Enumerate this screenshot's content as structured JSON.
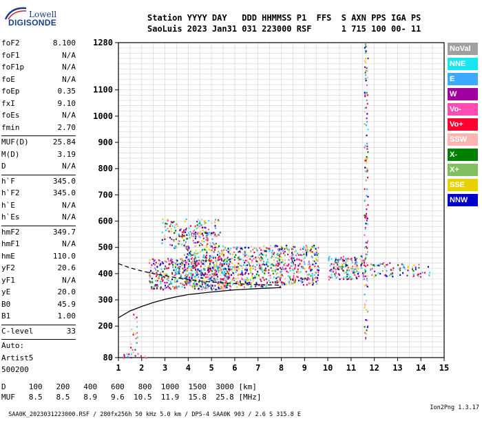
{
  "logo": {
    "brand": "Lowell",
    "product": "DIGISONDE"
  },
  "header": {
    "line1": "Station YYYY DAY   DDD HHMMSS P1  FFS  S AXN PPS IGA PS",
    "line2": "SaoLuis 2023 Jan31 031 223000 RSF      1 715 100 00- 11"
  },
  "params": {
    "group1": [
      {
        "k": "foF2",
        "v": "8.100"
      },
      {
        "k": "foF1",
        "v": "N/A"
      },
      {
        "k": "foF1p",
        "v": "N/A"
      },
      {
        "k": "foE",
        "v": "N/A"
      },
      {
        "k": "foEp",
        "v": "0.35"
      },
      {
        "k": "fxI",
        "v": "9.10"
      },
      {
        "k": "foEs",
        "v": "N/A"
      },
      {
        "k": "fmin",
        "v": "2.70"
      }
    ],
    "group2": [
      {
        "k": "MUF(D)",
        "v": "25.84"
      },
      {
        "k": "M(D)",
        "v": "3.19"
      },
      {
        "k": "D",
        "v": "N/A"
      }
    ],
    "group3": [
      {
        "k": "h`F",
        "v": "345.0"
      },
      {
        "k": "h`F2",
        "v": "345.0"
      },
      {
        "k": "h`E",
        "v": "N/A"
      },
      {
        "k": "h`Es",
        "v": "N/A"
      }
    ],
    "group4": [
      {
        "k": "hmF2",
        "v": "349.7"
      },
      {
        "k": "hmF1",
        "v": "N/A"
      },
      {
        "k": "hmE",
        "v": "110.0"
      },
      {
        "k": "yF2",
        "v": "20.6"
      },
      {
        "k": "yF1",
        "v": "N/A"
      },
      {
        "k": "yE",
        "v": "20.0"
      },
      {
        "k": "B0",
        "v": "45.9"
      },
      {
        "k": "B1",
        "v": "1.00"
      }
    ],
    "clevel": {
      "k": "C-level",
      "v": "33"
    },
    "auto": [
      "Auto:",
      "Artist5",
      "500200"
    ]
  },
  "legend": [
    {
      "label": "NoVal",
      "color": "#a0a0a0"
    },
    {
      "label": "NNE",
      "color": "#19e6f0"
    },
    {
      "label": "E",
      "color": "#3ca8ff"
    },
    {
      "label": "W",
      "color": "#a000a0"
    },
    {
      "label": "Vo-",
      "color": "#ff4cb4"
    },
    {
      "label": "Vo+",
      "color": "#ff0030"
    },
    {
      "label": "SSW",
      "color": "#ffb4b4"
    },
    {
      "label": "X-",
      "color": "#008000"
    },
    {
      "label": "X+",
      "color": "#80c060"
    },
    {
      "label": "SSE",
      "color": "#e6d200"
    },
    {
      "label": "NNW",
      "color": "#0000c8"
    }
  ],
  "muf_table": {
    "d_label": "D",
    "d_values": [
      "100",
      "200",
      "400",
      "600",
      "800",
      "1000",
      "1500",
      "3000"
    ],
    "d_unit": "[km]",
    "muf_label": "MUF",
    "muf_values": [
      "8.5",
      "8.5",
      "8.9",
      "9.6",
      "10.5",
      "11.9",
      "15.8",
      "25.8"
    ],
    "muf_unit": "[MHz]"
  },
  "footer": {
    "left": "SAA0K_2023031223000.RSF / 280fx256h 50 kHz 5.0 km / DPS-4 SAA0K 903 / 2.6 S 315.8 E",
    "right": "Ion2Png 1.3.17"
  },
  "chart_data": {
    "type": "scatter",
    "xlim": [
      1,
      15
    ],
    "ylim": [
      80,
      1280
    ],
    "x_ticks": [
      1,
      2,
      3,
      4,
      5,
      6,
      7,
      8,
      9,
      10,
      11,
      12,
      13,
      14,
      15
    ],
    "y_ticks": [
      80,
      200,
      300,
      400,
      500,
      600,
      700,
      800,
      900,
      1000,
      1100,
      1280
    ],
    "grid": true,
    "traces": [
      {
        "name": "profile",
        "color": "#000000",
        "style": "solid",
        "points": [
          [
            1,
            232
          ],
          [
            1.5,
            258
          ],
          [
            2,
            275
          ],
          [
            2.5,
            290
          ],
          [
            3,
            302
          ],
          [
            3.5,
            312
          ],
          [
            4,
            320
          ],
          [
            4.5,
            325
          ],
          [
            5,
            330
          ],
          [
            6,
            338
          ],
          [
            7,
            343
          ],
          [
            8,
            347
          ]
        ]
      },
      {
        "name": "virtual-height",
        "color": "#000000",
        "style": "dashed",
        "points": [
          [
            1,
            438
          ],
          [
            1.5,
            422
          ],
          [
            2,
            410
          ],
          [
            2.5,
            400
          ],
          [
            3,
            392
          ],
          [
            3.5,
            384
          ],
          [
            4,
            378
          ],
          [
            4.5,
            372
          ],
          [
            5,
            368
          ],
          [
            5.5,
            365
          ],
          [
            6,
            362
          ],
          [
            6.5,
            360
          ],
          [
            7,
            358
          ],
          [
            7.5,
            357
          ],
          [
            8,
            356
          ]
        ]
      }
    ],
    "echo_regions": [
      {
        "x": [
          2.3,
          5.8
        ],
        "y": [
          340,
          460
        ],
        "density": 0.55
      },
      {
        "x": [
          3.8,
          8.0
        ],
        "y": [
          350,
          510
        ],
        "density": 0.45
      },
      {
        "x": [
          2.8,
          5.3
        ],
        "y": [
          500,
          610
        ],
        "density": 0.28
      },
      {
        "x": [
          3.5,
          5.5
        ],
        "y": [
          540,
          560
        ],
        "density": 0.6
      },
      {
        "x": [
          7.8,
          9.6
        ],
        "y": [
          360,
          510
        ],
        "density": 0.5
      },
      {
        "x": [
          10.0,
          11.6
        ],
        "y": [
          380,
          470
        ],
        "density": 0.6
      },
      {
        "x": [
          11.8,
          12.8
        ],
        "y": [
          390,
          450
        ],
        "density": 0.35
      },
      {
        "x": [
          12.9,
          13.5
        ],
        "y": [
          395,
          440
        ],
        "density": 0.3
      },
      {
        "x": [
          13.6,
          14.4
        ],
        "y": [
          390,
          440
        ],
        "density": 0.25
      },
      {
        "x": [
          1.2,
          2.2
        ],
        "y": [
          80,
          100
        ],
        "density": 0.35
      },
      {
        "x": [
          1.5,
          1.8
        ],
        "y": [
          100,
          250
        ],
        "density": 0.2
      },
      {
        "x": [
          11.55,
          11.7
        ],
        "y": [
          150,
          1280
        ],
        "density": 0.35
      }
    ]
  }
}
